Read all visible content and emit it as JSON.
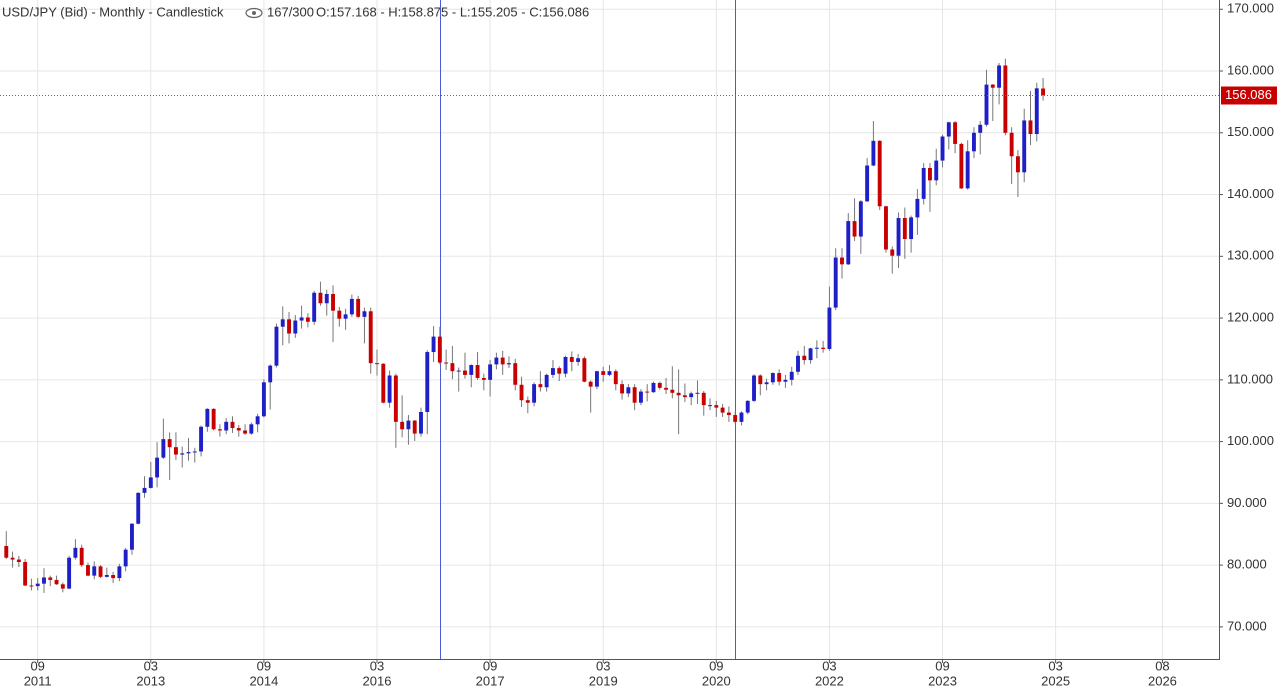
{
  "chart_data": {
    "type": "candlestick",
    "title": "USD/JPY (Bid) - Monthly - Candlestick",
    "counter": "167/300",
    "ohlc_text": "O:157.168 - H:158.875 - L:155.205 - C:156.086",
    "up_color": "#1f1fc8",
    "down_color": "#c80000",
    "grid": true,
    "xlim": [
      "2011-03",
      "2027-05"
    ],
    "ylim": [
      64.8,
      171.5
    ],
    "yticks": [
      {
        "value": 70,
        "label": "70.000"
      },
      {
        "value": 80,
        "label": "80.000"
      },
      {
        "value": 90,
        "label": "90.000"
      },
      {
        "value": 100,
        "label": "100.000"
      },
      {
        "value": 110,
        "label": "110.000"
      },
      {
        "value": 120,
        "label": "120.000"
      },
      {
        "value": 130,
        "label": "130.000"
      },
      {
        "value": 140,
        "label": "140.000"
      },
      {
        "value": 150,
        "label": "150.000"
      },
      {
        "value": 160,
        "label": "160.000"
      },
      {
        "value": 170,
        "label": "170.000"
      }
    ],
    "xticks": [
      {
        "value": "2011-09",
        "label": "09",
        "year": "2011"
      },
      {
        "value": "2013-03",
        "label": "03",
        "year": "2013"
      },
      {
        "value": "2014-09",
        "label": "09",
        "year": "2014"
      },
      {
        "value": "2016-03",
        "label": "03",
        "year": "2016"
      },
      {
        "value": "2017-09",
        "label": "09",
        "year": "2017"
      },
      {
        "value": "2019-03",
        "label": "03",
        "year": "2019"
      },
      {
        "value": "2020-09",
        "label": "09",
        "year": "2020"
      },
      {
        "value": "2022-03",
        "label": "03",
        "year": "2022"
      },
      {
        "value": "2023-09",
        "label": "09",
        "year": "2023"
      },
      {
        "value": "2025-03",
        "label": "03",
        "year": "2025"
      },
      {
        "value": "2026-08",
        "label": "08",
        "year": "2026"
      }
    ],
    "vertical_lines": [
      "2017-01",
      "2020-12"
    ],
    "x": [
      "2011-04",
      "2011-05",
      "2011-06",
      "2011-07",
      "2011-08",
      "2011-09",
      "2011-10",
      "2011-11",
      "2011-12",
      "2012-01",
      "2012-02",
      "2012-03",
      "2012-04",
      "2012-05",
      "2012-06",
      "2012-07",
      "2012-08",
      "2012-09",
      "2012-10",
      "2012-11",
      "2012-12",
      "2013-01",
      "2013-02",
      "2013-03",
      "2013-04",
      "2013-05",
      "2013-06",
      "2013-07",
      "2013-08",
      "2013-09",
      "2013-10",
      "2013-11",
      "2013-12",
      "2014-01",
      "2014-02",
      "2014-03",
      "2014-04",
      "2014-05",
      "2014-06",
      "2014-07",
      "2014-08",
      "2014-09",
      "2014-10",
      "2014-11",
      "2014-12",
      "2015-01",
      "2015-02",
      "2015-03",
      "2015-04",
      "2015-05",
      "2015-06",
      "2015-07",
      "2015-08",
      "2015-09",
      "2015-10",
      "2015-11",
      "2015-12",
      "2016-01",
      "2016-02",
      "2016-03",
      "2016-04",
      "2016-05",
      "2016-06",
      "2016-07",
      "2016-08",
      "2016-09",
      "2016-10",
      "2016-11",
      "2016-12",
      "2017-01",
      "2017-02",
      "2017-03",
      "2017-04",
      "2017-05",
      "2017-06",
      "2017-07",
      "2017-08",
      "2017-09",
      "2017-10",
      "2017-11",
      "2017-12",
      "2018-01",
      "2018-02",
      "2018-03",
      "2018-04",
      "2018-05",
      "2018-06",
      "2018-07",
      "2018-08",
      "2018-09",
      "2018-10",
      "2018-11",
      "2018-12",
      "2019-01",
      "2019-02",
      "2019-03",
      "2019-04",
      "2019-05",
      "2019-06",
      "2019-07",
      "2019-08",
      "2019-09",
      "2019-10",
      "2019-11",
      "2019-12",
      "2020-01",
      "2020-02",
      "2020-03",
      "2020-04",
      "2020-05",
      "2020-06",
      "2020-07",
      "2020-08",
      "2020-09",
      "2020-10",
      "2020-11",
      "2020-12",
      "2021-01",
      "2021-02",
      "2021-03",
      "2021-04",
      "2021-05",
      "2021-06",
      "2021-07",
      "2021-08",
      "2021-09",
      "2021-10",
      "2021-11",
      "2021-12",
      "2022-01",
      "2022-02",
      "2022-03",
      "2022-04",
      "2022-05",
      "2022-06",
      "2022-07",
      "2022-08",
      "2022-09",
      "2022-10",
      "2022-11",
      "2022-12",
      "2023-01",
      "2023-02",
      "2023-03",
      "2023-04",
      "2023-05",
      "2023-06",
      "2023-07",
      "2023-08",
      "2023-09",
      "2023-10",
      "2023-11",
      "2023-12",
      "2024-01",
      "2024-02",
      "2024-03",
      "2024-04",
      "2024-05",
      "2024-06",
      "2024-07",
      "2024-08",
      "2024-09",
      "2024-10",
      "2024-11",
      "2024-12",
      "2025-01"
    ],
    "ohlc": [
      [
        83.1,
        85.5,
        81.0,
        81.2
      ],
      [
        81.2,
        82.2,
        79.6,
        80.9
      ],
      [
        80.9,
        81.5,
        79.7,
        80.5
      ],
      [
        80.5,
        81.0,
        76.6,
        76.7
      ],
      [
        76.7,
        77.8,
        75.9,
        76.6
      ],
      [
        76.6,
        77.9,
        75.9,
        77.0
      ],
      [
        77.0,
        79.5,
        75.5,
        78.0
      ],
      [
        78.0,
        78.3,
        76.6,
        77.6
      ],
      [
        77.6,
        78.3,
        76.8,
        76.9
      ],
      [
        76.9,
        77.2,
        75.6,
        76.2
      ],
      [
        76.2,
        81.5,
        76.1,
        81.2
      ],
      [
        81.2,
        84.2,
        80.9,
        82.8
      ],
      [
        82.8,
        83.3,
        79.7,
        80.0
      ],
      [
        80.0,
        80.4,
        78.2,
        78.3
      ],
      [
        78.3,
        80.6,
        77.7,
        79.8
      ],
      [
        79.8,
        80.0,
        77.9,
        78.1
      ],
      [
        78.1,
        79.6,
        78.0,
        78.4
      ],
      [
        78.4,
        78.9,
        77.1,
        77.9
      ],
      [
        77.9,
        80.2,
        77.4,
        79.8
      ],
      [
        79.8,
        82.8,
        79.0,
        82.5
      ],
      [
        82.5,
        86.8,
        81.7,
        86.7
      ],
      [
        86.7,
        91.8,
        86.6,
        91.7
      ],
      [
        91.7,
        94.4,
        90.9,
        92.5
      ],
      [
        92.5,
        96.7,
        92.4,
        94.2
      ],
      [
        94.2,
        99.9,
        92.6,
        97.4
      ],
      [
        97.4,
        103.7,
        97.2,
        100.4
      ],
      [
        100.4,
        101.5,
        93.8,
        99.1
      ],
      [
        99.1,
        101.5,
        97.0,
        97.9
      ],
      [
        97.9,
        99.2,
        95.8,
        98.1
      ],
      [
        98.1,
        100.6,
        96.9,
        98.3
      ],
      [
        98.3,
        99.0,
        96.6,
        98.4
      ],
      [
        98.4,
        102.6,
        97.6,
        102.4
      ],
      [
        102.4,
        105.4,
        101.6,
        105.3
      ],
      [
        105.3,
        105.4,
        101.8,
        102.0
      ],
      [
        102.0,
        102.8,
        100.8,
        101.8
      ],
      [
        101.8,
        103.8,
        101.2,
        103.2
      ],
      [
        103.2,
        104.1,
        101.4,
        102.2
      ],
      [
        102.2,
        102.7,
        100.8,
        101.8
      ],
      [
        101.8,
        102.8,
        101.1,
        101.3
      ],
      [
        101.3,
        103.1,
        101.1,
        102.8
      ],
      [
        102.8,
        104.5,
        101.5,
        104.1
      ],
      [
        104.1,
        110.1,
        103.9,
        109.6
      ],
      [
        109.6,
        112.5,
        105.2,
        112.3
      ],
      [
        112.3,
        119.1,
        112.0,
        118.6
      ],
      [
        118.6,
        121.9,
        115.6,
        119.8
      ],
      [
        119.8,
        121.0,
        115.9,
        117.5
      ],
      [
        117.5,
        120.5,
        116.8,
        119.6
      ],
      [
        119.6,
        122.0,
        118.3,
        120.1
      ],
      [
        120.1,
        120.8,
        118.5,
        119.4
      ],
      [
        119.4,
        124.4,
        118.9,
        124.1
      ],
      [
        124.1,
        125.9,
        122.0,
        122.4
      ],
      [
        122.4,
        124.6,
        120.4,
        123.9
      ],
      [
        123.9,
        125.3,
        116.1,
        121.2
      ],
      [
        121.2,
        121.8,
        118.6,
        119.9
      ],
      [
        119.9,
        121.5,
        118.1,
        120.6
      ],
      [
        120.6,
        123.8,
        120.2,
        123.1
      ],
      [
        123.1,
        123.6,
        120.0,
        120.2
      ],
      [
        120.2,
        121.7,
        115.9,
        121.1
      ],
      [
        121.1,
        121.7,
        111.0,
        112.7
      ],
      [
        112.7,
        114.9,
        110.7,
        112.6
      ],
      [
        112.6,
        112.7,
        106.2,
        106.3
      ],
      [
        106.3,
        111.5,
        105.5,
        110.7
      ],
      [
        110.7,
        111.0,
        99.0,
        103.2
      ],
      [
        103.2,
        107.5,
        100.7,
        102.0
      ],
      [
        102.0,
        104.3,
        99.5,
        103.4
      ],
      [
        103.4,
        103.5,
        100.1,
        101.3
      ],
      [
        101.3,
        105.5,
        100.8,
        104.8
      ],
      [
        104.8,
        114.8,
        101.2,
        114.5
      ],
      [
        114.5,
        118.7,
        112.9,
        117.0
      ],
      [
        117.0,
        118.6,
        112.5,
        112.8
      ],
      [
        112.8,
        114.9,
        111.6,
        112.7
      ],
      [
        112.7,
        115.5,
        110.1,
        111.4
      ],
      [
        111.4,
        112.0,
        108.1,
        111.5
      ],
      [
        111.5,
        114.4,
        110.2,
        110.8
      ],
      [
        110.8,
        112.5,
        108.8,
        112.4
      ],
      [
        112.4,
        114.5,
        110.0,
        110.3
      ],
      [
        110.3,
        111.0,
        108.3,
        110.0
      ],
      [
        110.0,
        113.2,
        107.3,
        112.5
      ],
      [
        112.5,
        114.4,
        111.7,
        113.6
      ],
      [
        113.6,
        114.7,
        110.8,
        112.5
      ],
      [
        112.5,
        113.8,
        111.9,
        112.7
      ],
      [
        112.7,
        113.4,
        108.3,
        109.2
      ],
      [
        109.2,
        110.5,
        105.6,
        106.7
      ],
      [
        106.7,
        107.3,
        104.6,
        106.3
      ],
      [
        106.3,
        109.6,
        105.7,
        109.3
      ],
      [
        109.3,
        111.4,
        108.1,
        108.8
      ],
      [
        108.8,
        111.0,
        108.1,
        110.8
      ],
      [
        110.8,
        113.2,
        110.3,
        111.9
      ],
      [
        111.9,
        112.2,
        109.8,
        111.0
      ],
      [
        111.0,
        113.9,
        110.4,
        113.7
      ],
      [
        113.7,
        114.6,
        111.4,
        112.9
      ],
      [
        112.9,
        114.2,
        112.3,
        113.5
      ],
      [
        113.5,
        113.8,
        109.6,
        109.7
      ],
      [
        109.7,
        109.9,
        104.7,
        108.9
      ],
      [
        108.9,
        111.5,
        108.5,
        111.4
      ],
      [
        111.4,
        112.1,
        109.7,
        110.8
      ],
      [
        110.8,
        112.4,
        110.6,
        111.4
      ],
      [
        111.4,
        111.7,
        108.3,
        109.3
      ],
      [
        109.3,
        109.9,
        106.8,
        107.8
      ],
      [
        107.8,
        109.3,
        107.2,
        108.8
      ],
      [
        108.8,
        109.3,
        105.1,
        106.3
      ],
      [
        106.3,
        108.5,
        105.9,
        108.1
      ],
      [
        108.1,
        109.3,
        106.5,
        108.0
      ],
      [
        108.0,
        109.7,
        107.9,
        109.5
      ],
      [
        109.5,
        109.7,
        108.4,
        108.7
      ],
      [
        108.7,
        110.3,
        107.7,
        108.4
      ],
      [
        108.4,
        112.2,
        107.0,
        107.9
      ],
      [
        107.9,
        111.7,
        101.2,
        107.5
      ],
      [
        107.5,
        109.4,
        106.4,
        107.2
      ],
      [
        107.2,
        108.1,
        105.9,
        107.8
      ],
      [
        107.8,
        109.9,
        106.1,
        107.9
      ],
      [
        107.9,
        108.2,
        104.2,
        105.9
      ],
      [
        105.9,
        107.0,
        105.1,
        105.9
      ],
      [
        105.9,
        106.6,
        104.0,
        105.5
      ],
      [
        105.5,
        106.1,
        104.0,
        104.7
      ],
      [
        104.7,
        105.7,
        103.2,
        104.3
      ],
      [
        104.3,
        104.8,
        102.9,
        103.2
      ],
      [
        103.2,
        104.9,
        102.6,
        104.7
      ],
      [
        104.7,
        106.7,
        104.4,
        106.6
      ],
      [
        106.6,
        110.9,
        106.4,
        110.7
      ],
      [
        110.7,
        110.9,
        107.5,
        109.3
      ],
      [
        109.3,
        110.2,
        108.3,
        109.6
      ],
      [
        109.6,
        111.2,
        109.2,
        111.1
      ],
      [
        111.1,
        111.7,
        109.1,
        109.7
      ],
      [
        109.7,
        110.8,
        108.7,
        110.0
      ],
      [
        110.0,
        112.1,
        109.1,
        111.3
      ],
      [
        111.3,
        114.7,
        110.8,
        113.9
      ],
      [
        113.9,
        115.5,
        112.5,
        113.2
      ],
      [
        113.2,
        115.2,
        112.6,
        115.1
      ],
      [
        115.1,
        116.4,
        113.5,
        115.2
      ],
      [
        115.2,
        116.3,
        114.4,
        115.0
      ],
      [
        115.0,
        125.1,
        114.7,
        121.7
      ],
      [
        121.7,
        131.3,
        121.3,
        129.8
      ],
      [
        129.8,
        131.3,
        126.4,
        128.7
      ],
      [
        128.7,
        137.0,
        128.6,
        135.7
      ],
      [
        135.7,
        139.4,
        132.5,
        133.2
      ],
      [
        133.2,
        139.1,
        130.4,
        138.9
      ],
      [
        138.9,
        145.9,
        138.8,
        144.7
      ],
      [
        144.7,
        151.9,
        144.6,
        148.7
      ],
      [
        148.7,
        148.8,
        137.5,
        138.1
      ],
      [
        138.1,
        138.2,
        130.6,
        131.1
      ],
      [
        131.1,
        131.6,
        127.2,
        130.1
      ],
      [
        130.1,
        137.1,
        128.1,
        136.2
      ],
      [
        136.2,
        137.9,
        129.6,
        132.8
      ],
      [
        132.8,
        136.6,
        130.6,
        136.3
      ],
      [
        136.3,
        140.9,
        133.5,
        139.3
      ],
      [
        139.3,
        145.1,
        138.4,
        144.3
      ],
      [
        144.3,
        145.1,
        137.2,
        142.3
      ],
      [
        142.3,
        147.4,
        141.5,
        145.5
      ],
      [
        145.5,
        149.7,
        144.4,
        149.4
      ],
      [
        149.4,
        151.8,
        147.3,
        151.7
      ],
      [
        151.7,
        151.9,
        146.7,
        148.2
      ],
      [
        148.2,
        148.4,
        140.9,
        141.0
      ],
      [
        141.0,
        148.8,
        140.8,
        147.0
      ],
      [
        147.0,
        150.9,
        145.9,
        150.0
      ],
      [
        150.0,
        151.9,
        146.5,
        151.3
      ],
      [
        151.3,
        160.2,
        151.0,
        157.8
      ],
      [
        157.8,
        157.9,
        151.9,
        157.3
      ],
      [
        157.3,
        161.3,
        154.6,
        160.9
      ],
      [
        160.9,
        162.0,
        149.6,
        150.0
      ],
      [
        150.0,
        150.9,
        141.7,
        146.2
      ],
      [
        146.2,
        147.2,
        139.6,
        143.6
      ],
      [
        143.6,
        153.9,
        142.0,
        152.0
      ],
      [
        152.0,
        156.8,
        148.0,
        149.8
      ],
      [
        149.8,
        158.1,
        148.6,
        157.2
      ],
      [
        157.168,
        158.875,
        155.205,
        156.086
      ]
    ]
  }
}
